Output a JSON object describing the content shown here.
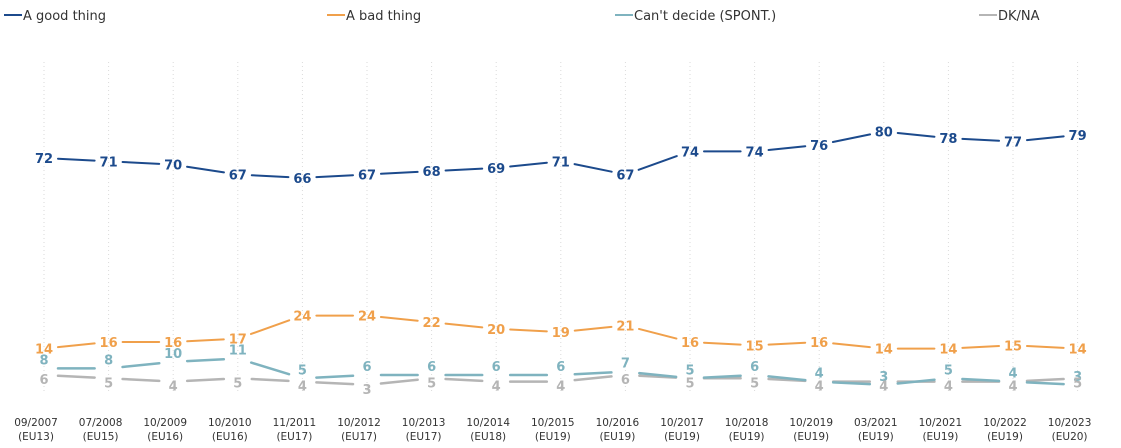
{
  "chart_data": {
    "type": "line",
    "categories": [
      [
        "09/2007",
        "(EU13)"
      ],
      [
        "07/2008",
        "(EU15)"
      ],
      [
        "10/2009",
        "(EU16)"
      ],
      [
        "10/2010",
        "(EU16)"
      ],
      [
        "11/2011",
        "(EU17)"
      ],
      [
        "10/2012",
        "(EU17)"
      ],
      [
        "10/2013",
        "(EU17)"
      ],
      [
        "10/2014",
        "(EU18)"
      ],
      [
        "10/2015",
        "(EU19)"
      ],
      [
        "10/2016",
        "(EU19)"
      ],
      [
        "10/2017",
        "(EU19)"
      ],
      [
        "10/2018",
        "(EU19)"
      ],
      [
        "10/2019",
        "(EU19)"
      ],
      [
        "03/2021",
        "(EU19)"
      ],
      [
        "10/2021",
        "(EU19)"
      ],
      [
        "10/2022",
        "(EU19)"
      ],
      [
        "10/2023",
        "(EU20)"
      ]
    ],
    "series": [
      {
        "name": "A good thing",
        "color": "#1c4a8c",
        "values": [
          72,
          71,
          70,
          67,
          66,
          67,
          68,
          69,
          71,
          67,
          74,
          74,
          76,
          80,
          78,
          77,
          79
        ]
      },
      {
        "name": "A bad thing",
        "color": "#f0a04b",
        "values": [
          14,
          16,
          16,
          17,
          24,
          24,
          22,
          20,
          19,
          21,
          16,
          15,
          16,
          14,
          14,
          15,
          14
        ]
      },
      {
        "name": "Can't decide (SPONT.)",
        "color": "#7fb3bf",
        "values": [
          8,
          8,
          10,
          11,
          5,
          6,
          6,
          6,
          6,
          7,
          5,
          6,
          4,
          3,
          5,
          4,
          3
        ]
      },
      {
        "name": "DK/NA",
        "color": "#b5b5b5",
        "values": [
          6,
          5,
          4,
          5,
          4,
          3,
          5,
          4,
          4,
          6,
          5,
          5,
          4,
          4,
          4,
          4,
          5
        ]
      }
    ],
    "legend_position": "top",
    "grid": "vertical-dotted",
    "ylim": [
      0,
      100
    ]
  }
}
